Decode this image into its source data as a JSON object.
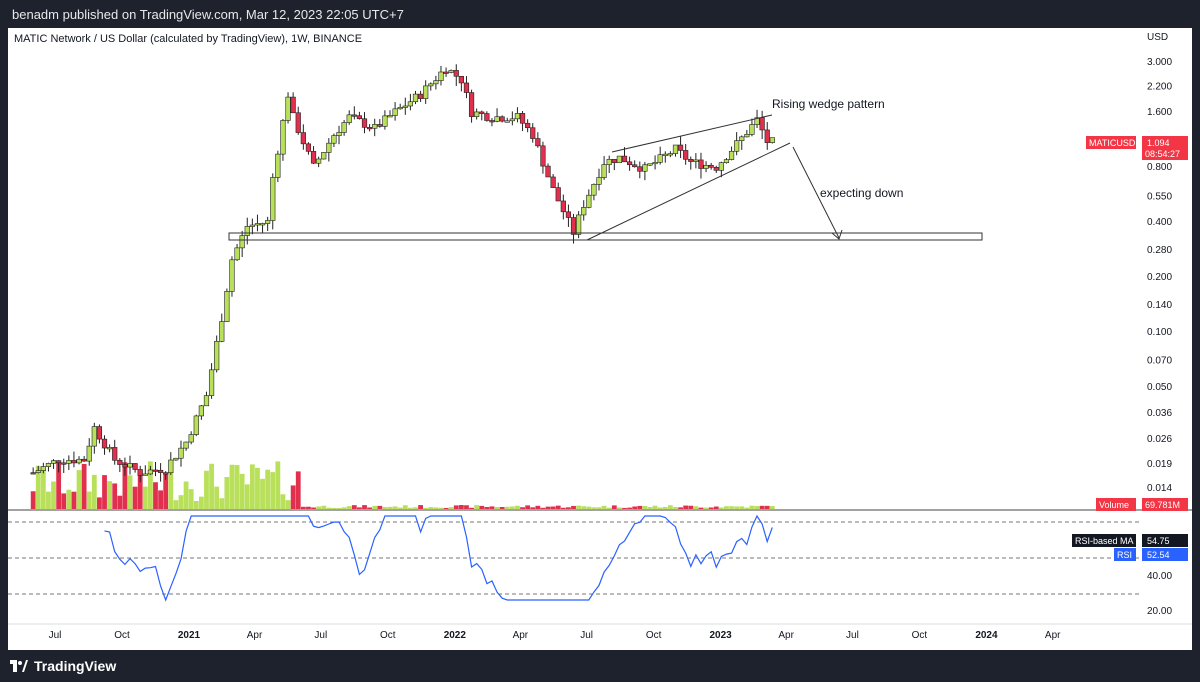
{
  "header": {
    "published": "benadm published on TradingView.com, Mar 12, 2023 22:05 UTC+7"
  },
  "chart_title": "MATIC Network / US Dollar (calculated by TradingView), 1W, BINANCE",
  "currency": "USD",
  "price_badge": {
    "symbol": "MATICUSD",
    "price": "1.094",
    "countdown": "08:54:27",
    "color": "#f23645"
  },
  "volume_badge": {
    "label": "Volume",
    "value": "69.781M"
  },
  "rsi_badges": {
    "ma_label": "RSI-based MA",
    "ma_value": "54.75",
    "rsi_label": "RSI",
    "rsi_value": "52.54"
  },
  "annotations": {
    "wedge": "Rising wedge pattern",
    "expect": "expecting down"
  },
  "footer": {
    "brand": "TradingView"
  },
  "colors": {
    "up": "#b9e05a",
    "down": "#e0304e",
    "rsi": "#2962ff",
    "text": "#131722"
  },
  "chart_data": [
    {
      "type": "candlestick",
      "title": "MATIC Network / US Dollar (calculated by TradingView), 1W, BINANCE",
      "scale": "log",
      "price_ticks": [
        "3.000",
        "2.200",
        "1.600",
        "1.094",
        "0.800",
        "0.550",
        "0.400",
        "0.280",
        "0.200",
        "0.140",
        "0.100",
        "0.070",
        "0.050",
        "0.036",
        "0.026",
        "0.019",
        "0.014"
      ],
      "time_labels": [
        "Jul",
        "Oct",
        "2021",
        "Apr",
        "Jul",
        "Oct",
        "2022",
        "Apr",
        "Jul",
        "Oct",
        "2023",
        "Apr",
        "Jul",
        "Oct",
        "2024",
        "Apr"
      ],
      "close_path": [
        [
          "2020-06-01",
          0.017
        ],
        [
          "2020-07-06",
          0.02
        ],
        [
          "2020-08-10",
          0.02
        ],
        [
          "2020-08-24",
          0.03
        ],
        [
          "2020-09-21",
          0.02
        ],
        [
          "2020-10-26",
          0.017
        ],
        [
          "2020-11-30",
          0.018
        ],
        [
          "2020-12-28",
          0.025
        ],
        [
          "2021-01-25",
          0.045
        ],
        [
          "2021-02-15",
          0.12
        ],
        [
          "2021-03-01",
          0.25
        ],
        [
          "2021-03-22",
          0.38
        ],
        [
          "2021-04-19",
          0.4
        ],
        [
          "2021-04-26",
          0.7
        ],
        [
          "2021-05-17",
          2.0
        ],
        [
          "2021-05-24",
          1.5
        ],
        [
          "2021-06-21",
          0.8
        ],
        [
          "2021-07-19",
          1.2
        ],
        [
          "2021-08-09",
          1.5
        ],
        [
          "2021-09-13",
          1.3
        ],
        [
          "2021-10-11",
          1.6
        ],
        [
          "2021-11-15",
          2.0
        ],
        [
          "2021-12-20",
          2.8
        ],
        [
          "2022-01-10",
          2.4
        ],
        [
          "2022-01-24",
          1.6
        ],
        [
          "2022-02-21",
          1.5
        ],
        [
          "2022-03-28",
          1.5
        ],
        [
          "2022-04-18",
          1.2
        ],
        [
          "2022-05-16",
          0.6
        ],
        [
          "2022-06-13",
          0.35
        ],
        [
          "2022-06-27",
          0.5
        ],
        [
          "2022-07-25",
          0.85
        ],
        [
          "2022-08-15",
          0.9
        ],
        [
          "2022-09-19",
          0.78
        ],
        [
          "2022-10-31",
          1.0
        ],
        [
          "2022-11-21",
          0.85
        ],
        [
          "2022-12-26",
          0.8
        ],
        [
          "2023-01-30",
          1.15
        ],
        [
          "2023-02-20",
          1.45
        ],
        [
          "2023-03-06",
          1.1
        ],
        [
          "2023-03-13",
          1.094
        ]
      ]
    },
    {
      "type": "bar",
      "title": "Volume",
      "last_value": "69.781M"
    },
    {
      "type": "line",
      "title": "RSI",
      "ticks": [
        "40.00",
        "20.00"
      ],
      "levels": [
        70,
        50,
        30
      ],
      "rsi": 52.54,
      "rsi_ma": 54.75
    }
  ]
}
